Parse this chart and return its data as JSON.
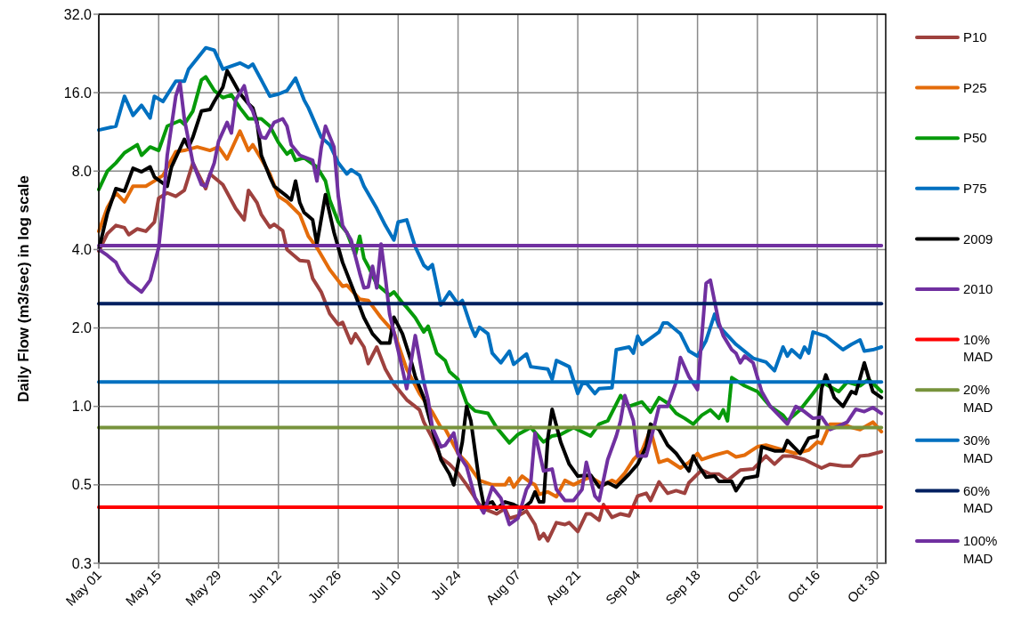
{
  "chart_data": {
    "type": "line",
    "ylabel": "Daily Flow (m3/sec) in log scale",
    "log": true,
    "grid": true,
    "legend": "right",
    "xlim": [
      "--05-01",
      "--11-01"
    ],
    "xticks": [
      {
        "value": "--05-01",
        "label": "May 01"
      },
      {
        "value": "--05-15",
        "label": "May 15"
      },
      {
        "value": "--05-29",
        "label": "May 29"
      },
      {
        "value": "--06-12",
        "label": "Jun 12"
      },
      {
        "value": "--06-26",
        "label": "Jun 26"
      },
      {
        "value": "--07-10",
        "label": "Jul 10"
      },
      {
        "value": "--07-24",
        "label": "Jul 24"
      },
      {
        "value": "--08-07",
        "label": "Aug 07"
      },
      {
        "value": "--08-21",
        "label": "Aug 21"
      },
      {
        "value": "--09-04",
        "label": "Sep 04"
      },
      {
        "value": "--09-18",
        "label": "Sep 18"
      },
      {
        "value": "--10-02",
        "label": "Oct 02"
      },
      {
        "value": "--10-16",
        "label": "Oct 16"
      },
      {
        "value": "--10-30",
        "label": "Oct 30"
      }
    ],
    "ylim": [
      0.25,
      32
    ],
    "yticks": [
      {
        "value": 0.25,
        "label": "0.3"
      },
      {
        "value": 0.5,
        "label": "0.5"
      },
      {
        "value": 1,
        "label": "1.0"
      },
      {
        "value": 2,
        "label": "2.0"
      },
      {
        "value": 4,
        "label": "4.0"
      },
      {
        "value": 8,
        "label": "8.0"
      },
      {
        "value": 16,
        "label": "16.0"
      },
      {
        "value": 32,
        "label": "32.0"
      }
    ],
    "series": [
      {
        "name": "P10",
        "color": "#9e413e",
        "x": [
          "--05-01",
          "--05-03",
          "--05-05",
          "--05-07",
          "--05-08",
          "--05-10",
          "--05-12",
          "--05-14",
          "--05-15",
          "--05-17",
          "--05-19",
          "--05-21",
          "--05-23",
          "--05-24",
          "--05-26",
          "--05-27",
          "--05-30",
          "--06-02",
          "--06-04",
          "--06-05",
          "--06-07",
          "--06-08",
          "--06-10",
          "--06-11",
          "--06-13",
          "--06-14",
          "--06-17",
          "--06-19",
          "--06-20",
          "--06-22",
          "--06-24",
          "--06-26",
          "--06-27",
          "--06-29",
          "--06-30",
          "--07-02",
          "--07-03",
          "--07-05",
          "--07-07",
          "--07-09",
          "--07-12",
          "--07-15",
          "--07-16",
          "--07-18",
          "--07-20",
          "--07-22",
          "--07-24",
          "--07-26",
          "--07-29",
          "--07-30",
          "--08-02",
          "--08-04",
          "--08-05",
          "--08-07",
          "--08-09",
          "--08-11",
          "--08-12",
          "--08-13",
          "--08-14",
          "--08-16",
          "--08-18",
          "--08-19",
          "--08-21",
          "--08-23",
          "--08-24",
          "--08-26",
          "--08-27",
          "--08-29",
          "--08-31",
          "--09-02",
          "--09-04",
          "--09-06",
          "--09-07",
          "--09-09",
          "--09-11",
          "--09-13",
          "--09-15",
          "--09-16",
          "--09-19",
          "--09-21",
          "--09-23",
          "--09-25",
          "--09-28",
          "--10-01",
          "--10-04",
          "--10-06",
          "--10-08",
          "--10-10",
          "--10-13",
          "--10-17",
          "--10-19",
          "--10-22",
          "--10-24",
          "--10-26",
          "--10-28",
          "--10-31"
        ],
        "values": [
          3.95,
          4.6,
          4.95,
          4.85,
          4.56,
          4.8,
          4.7,
          5.1,
          6.3,
          6.6,
          6.4,
          6.75,
          8.6,
          7.95,
          6.85,
          7.8,
          7.1,
          5.75,
          5.2,
          6.75,
          6.05,
          5.45,
          4.87,
          5.0,
          4.72,
          4.0,
          3.63,
          3.6,
          3.1,
          2.75,
          2.27,
          2.06,
          2.1,
          1.75,
          1.9,
          1.69,
          1.46,
          1.69,
          1.39,
          1.22,
          1.06,
          0.97,
          0.87,
          0.755,
          0.635,
          0.6,
          0.555,
          0.5,
          0.42,
          0.405,
          0.387,
          0.405,
          0.372,
          0.38,
          0.397,
          0.352,
          0.31,
          0.325,
          0.305,
          0.358,
          0.352,
          0.358,
          0.331,
          0.387,
          0.387,
          0.366,
          0.42,
          0.375,
          0.387,
          0.38,
          0.453,
          0.464,
          0.435,
          0.513,
          0.464,
          0.475,
          0.464,
          0.51,
          0.57,
          0.55,
          0.55,
          0.52,
          0.57,
          0.575,
          0.645,
          0.6,
          0.645,
          0.645,
          0.625,
          0.58,
          0.6,
          0.59,
          0.59,
          0.645,
          0.65,
          0.67
        ]
      },
      {
        "name": "P25",
        "color": "#e46c0a",
        "x": [
          "--05-01",
          "--05-03",
          "--05-05",
          "--05-07",
          "--05-09",
          "--05-12",
          "--05-14",
          "--05-16",
          "--05-19",
          "--05-21",
          "--05-24",
          "--05-27",
          "--05-29",
          "--05-31",
          "--06-03",
          "--06-05",
          "--06-06",
          "--06-08",
          "--06-10",
          "--06-12",
          "--06-14",
          "--06-17",
          "--06-19",
          "--06-21",
          "--06-24",
          "--06-27",
          "--06-28",
          "--07-01",
          "--07-03",
          "--07-06",
          "--07-09",
          "--07-12",
          "--07-15",
          "--07-18",
          "--07-20",
          "--07-21",
          "--07-24",
          "--07-26",
          "--07-29",
          "--08-01",
          "--08-04",
          "--08-05",
          "--08-06",
          "--08-08",
          "--08-10",
          "--08-11",
          "--08-12",
          "--08-14",
          "--08-16",
          "--08-18",
          "--08-20",
          "--08-22",
          "--08-24",
          "--08-27",
          "--08-29",
          "--08-30",
          "--09-01",
          "--09-03",
          "--09-05",
          "--09-07",
          "--09-09",
          "--09-11",
          "--09-14",
          "--09-16",
          "--09-18",
          "--09-19",
          "--09-22",
          "--09-25",
          "--09-27",
          "--09-29",
          "--10-02",
          "--10-04",
          "--10-08",
          "--10-11",
          "--10-14",
          "--10-16",
          "--10-17",
          "--10-19",
          "--10-22",
          "--10-24",
          "--10-26",
          "--10-29",
          "--10-31"
        ],
        "values": [
          4.7,
          5.8,
          6.6,
          6.1,
          7.0,
          7.0,
          7.33,
          7.7,
          9.5,
          9.6,
          9.9,
          9.6,
          9.9,
          8.9,
          11.4,
          9.6,
          10.1,
          8.9,
          7.8,
          6.4,
          6.1,
          5.45,
          4.5,
          4.07,
          3.35,
          2.89,
          2.92,
          2.58,
          2.55,
          2.19,
          1.93,
          1.39,
          1.12,
          0.95,
          0.83,
          0.82,
          0.66,
          0.61,
          0.52,
          0.5,
          0.5,
          0.53,
          0.49,
          0.54,
          0.51,
          0.5,
          0.46,
          0.47,
          0.45,
          0.52,
          0.5,
          0.52,
          0.535,
          0.5,
          0.52,
          0.51,
          0.555,
          0.625,
          0.675,
          0.815,
          0.61,
          0.625,
          0.58,
          0.61,
          0.66,
          0.625,
          0.65,
          0.67,
          0.64,
          0.65,
          0.7,
          0.71,
          0.68,
          0.66,
          0.68,
          0.73,
          0.72,
          0.855,
          0.855,
          0.83,
          0.815,
          0.87,
          0.8
        ]
      },
      {
        "name": "P50",
        "color": "#069a0a",
        "x": [
          "--05-01",
          "--05-03",
          "--05-05",
          "--05-07",
          "--05-10",
          "--05-11",
          "--05-13",
          "--05-15",
          "--05-17",
          "--05-20",
          "--05-21",
          "--05-23",
          "--05-25",
          "--05-26",
          "--05-28",
          "--05-30",
          "--06-01",
          "--06-03",
          "--06-05",
          "--06-08",
          "--06-10",
          "--06-12",
          "--06-14",
          "--06-15",
          "--06-16",
          "--06-18",
          "--06-21",
          "--06-23",
          "--06-24",
          "--06-26",
          "--06-28",
          "--06-30",
          "--07-01",
          "--07-02",
          "--07-03",
          "--07-05",
          "--07-08",
          "--07-09",
          "--07-11",
          "--07-12",
          "--07-14",
          "--07-16",
          "--07-17",
          "--07-19",
          "--07-21",
          "--07-22",
          "--07-24",
          "--07-26",
          "--07-28",
          "--07-31",
          "--08-02",
          "--08-05",
          "--08-07",
          "--08-10",
          "--08-13",
          "--08-15",
          "--08-17",
          "--08-20",
          "--08-24",
          "--08-26",
          "--08-28",
          "--08-31",
          "--09-02",
          "--09-05",
          "--09-07",
          "--09-09",
          "--09-11",
          "--09-13",
          "--09-15",
          "--09-17",
          "--09-19",
          "--09-21",
          "--09-23",
          "--09-24",
          "--09-25",
          "--09-26",
          "--09-29",
          "--10-02",
          "--10-05",
          "--10-08",
          "--10-09",
          "--10-12",
          "--10-15",
          "--10-17",
          "--10-21",
          "--10-23",
          "--10-26",
          "--10-28",
          "--10-31"
        ],
        "values": [
          6.8,
          8.0,
          8.6,
          9.4,
          10.1,
          9.2,
          9.9,
          9.6,
          11.9,
          12.5,
          12.1,
          13.6,
          17.9,
          18.4,
          16.3,
          15.3,
          15.7,
          14,
          12.7,
          12.7,
          11.9,
          10.3,
          9.3,
          9.6,
          8.8,
          9.0,
          8.3,
          7.33,
          6.2,
          5.1,
          4.65,
          3.82,
          4.5,
          3.7,
          3.45,
          2.94,
          2.67,
          2.75,
          2.5,
          2.4,
          2.19,
          1.93,
          2.03,
          1.6,
          1.5,
          1.36,
          1.27,
          1.03,
          0.96,
          0.94,
          0.83,
          0.725,
          0.78,
          0.83,
          0.73,
          0.77,
          0.78,
          0.83,
          0.77,
          0.855,
          0.88,
          1.1,
          1.0,
          1.04,
          0.95,
          1.08,
          1.03,
          0.94,
          0.9,
          0.855,
          0.925,
          0.97,
          0.9,
          0.97,
          0.88,
          1.29,
          1.2,
          1.14,
          1.0,
          0.925,
          0.88,
          0.97,
          1.12,
          1.24,
          1.14,
          1.24,
          1.2,
          1.27,
          1.14
        ]
      },
      {
        "name": "P75",
        "color": "#0070c0",
        "x": [
          "--05-01",
          "--05-05",
          "--05-07",
          "--05-09",
          "--05-11",
          "--05-13",
          "--05-14",
          "--05-16",
          "--05-19",
          "--05-21",
          "--05-22",
          "--05-26",
          "--05-28",
          "--05-30",
          "--06-03",
          "--06-05",
          "--06-06",
          "--06-08",
          "--06-10",
          "--06-12",
          "--06-14",
          "--06-16",
          "--06-18",
          "--06-19",
          "--06-22",
          "--06-24",
          "--06-26",
          "--06-28",
          "--06-29",
          "--07-01",
          "--07-02",
          "--07-05",
          "--07-07",
          "--07-09",
          "--07-10",
          "--07-12",
          "--07-14",
          "--07-16",
          "--07-17",
          "--07-18",
          "--07-20",
          "--07-22",
          "--07-24",
          "--07-25",
          "--07-27",
          "--07-28",
          "--07-29",
          "--07-31",
          "--08-01",
          "--08-03",
          "--08-05",
          "--08-06",
          "--08-09",
          "--08-10",
          "--08-14",
          "--08-15",
          "--08-16",
          "--08-19",
          "--08-21",
          "--08-22",
          "--08-23",
          "--08-25",
          "--08-26",
          "--08-29",
          "--08-30",
          "--09-02",
          "--09-03",
          "--09-04",
          "--09-05",
          "--09-09",
          "--09-10",
          "--09-11",
          "--09-14",
          "--09-16",
          "--09-18",
          "--09-20",
          "--09-22",
          "--09-23",
          "--09-27",
          "--10-01",
          "--10-04",
          "--10-06",
          "--10-08",
          "--10-09",
          "--10-10",
          "--10-12",
          "--10-13",
          "--10-14",
          "--10-15",
          "--10-18",
          "--10-22",
          "--10-24",
          "--10-26",
          "--10-27",
          "--10-29",
          "--10-31"
        ],
        "values": [
          11.5,
          11.9,
          15.5,
          13.1,
          14.3,
          12.8,
          15.5,
          14.8,
          17.7,
          17.7,
          19.7,
          23.8,
          23.3,
          19.7,
          20.8,
          20,
          20.6,
          17.9,
          15.5,
          15.8,
          16.3,
          18.2,
          15,
          14,
          10.8,
          10.1,
          8.6,
          7.8,
          8.1,
          7.7,
          7.0,
          5.75,
          4.95,
          4.35,
          5.1,
          5.2,
          4.1,
          3.48,
          3.37,
          3.5,
          2.45,
          2.75,
          2.47,
          2.55,
          2.03,
          1.86,
          2.01,
          1.9,
          1.6,
          1.47,
          1.63,
          1.45,
          1.59,
          1.42,
          1.39,
          1.27,
          1.5,
          1.42,
          1.12,
          1.22,
          1.23,
          1.12,
          1.17,
          1.18,
          1.65,
          1.69,
          1.6,
          1.86,
          1.73,
          1.93,
          2.09,
          2.09,
          1.9,
          1.63,
          1.56,
          1.79,
          2.26,
          2.03,
          1.73,
          1.53,
          1.48,
          1.37,
          1.69,
          1.56,
          1.65,
          1.54,
          1.69,
          1.6,
          1.93,
          1.86,
          1.65,
          1.73,
          1.8,
          1.63,
          1.65,
          1.69
        ]
      },
      {
        "name": "2009",
        "color": "#000000",
        "x": [
          "--05-01",
          "--05-03",
          "--05-05",
          "--05-07",
          "--05-09",
          "--05-11",
          "--05-13",
          "--05-14",
          "--05-17",
          "--05-18",
          "--05-21",
          "--05-22",
          "--05-23",
          "--05-25",
          "--05-27",
          "--05-28",
          "--05-30",
          "--05-31",
          "--06-01",
          "--06-03",
          "--06-05",
          "--06-06",
          "--06-07",
          "--06-08",
          "--06-10",
          "--06-11",
          "--06-14",
          "--06-15",
          "--06-16",
          "--06-17",
          "--06-18",
          "--06-20",
          "--06-21",
          "--06-23",
          "--06-25",
          "--06-27",
          "--06-30",
          "--07-02",
          "--07-04",
          "--07-06",
          "--07-08",
          "--07-09",
          "--07-11",
          "--07-13",
          "--07-14",
          "--07-16",
          "--07-18",
          "--07-20",
          "--07-22",
          "--07-23",
          "--07-25",
          "--07-26",
          "--07-27",
          "--07-29",
          "--07-30",
          "--08-01",
          "--08-02",
          "--08-04",
          "--08-06",
          "--08-08",
          "--08-10",
          "--08-11",
          "--08-12",
          "--08-13",
          "--08-14",
          "--08-15",
          "--08-17",
          "--08-19",
          "--08-21",
          "--08-24",
          "--08-26",
          "--08-28",
          "--08-30",
          "--09-02",
          "--09-04",
          "--09-06",
          "--09-07",
          "--09-09",
          "--09-11",
          "--09-13",
          "--09-16",
          "--09-17",
          "--09-18",
          "--09-20",
          "--09-22",
          "--09-23",
          "--09-26",
          "--09-27",
          "--09-29",
          "--10-02",
          "--10-03",
          "--10-06",
          "--10-08",
          "--10-09",
          "--10-12",
          "--10-14",
          "--10-16",
          "--10-17",
          "--10-18",
          "--10-20",
          "--10-22",
          "--10-24",
          "--10-25",
          "--10-27",
          "--10-28",
          "--10-29",
          "--10-31"
        ],
        "values": [
          4.0,
          5.5,
          6.85,
          6.7,
          8.2,
          7.95,
          8.3,
          7.6,
          7.0,
          8.3,
          10.6,
          9.9,
          10.8,
          13.6,
          13.8,
          14.8,
          16.8,
          19.4,
          18.2,
          15.9,
          14.5,
          14.0,
          12.3,
          9.2,
          7.6,
          7.0,
          6.4,
          6.2,
          7.33,
          6.05,
          5.55,
          5.2,
          4.2,
          6.5,
          4.65,
          3.57,
          2.67,
          2.19,
          1.9,
          1.75,
          1.75,
          2.2,
          1.9,
          1.5,
          1.3,
          1.08,
          0.815,
          0.625,
          0.55,
          0.5,
          0.73,
          1.0,
          0.88,
          0.51,
          0.42,
          0.43,
          0.404,
          0.43,
          0.42,
          0.404,
          0.43,
          0.47,
          0.43,
          0.43,
          0.755,
          0.975,
          0.73,
          0.6,
          0.54,
          0.545,
          0.49,
          0.51,
          0.49,
          0.55,
          0.6,
          0.7,
          0.855,
          0.815,
          0.71,
          0.66,
          0.565,
          0.645,
          0.6,
          0.535,
          0.54,
          0.515,
          0.515,
          0.475,
          0.53,
          0.54,
          0.7,
          0.675,
          0.675,
          0.74,
          0.66,
          0.755,
          0.77,
          1.17,
          1.32,
          1.08,
          1.0,
          1.14,
          1.12,
          1.47,
          1.29,
          1.14,
          1.08
        ]
      },
      {
        "name": "2010",
        "color": "#7030a0",
        "x": [
          "--05-01",
          "--05-03",
          "--05-05",
          "--05-06",
          "--05-08",
          "--05-11",
          "--05-13",
          "--05-15",
          "--05-16",
          "--05-17",
          "--05-19",
          "--05-20",
          "--05-21",
          "--05-23",
          "--05-25",
          "--05-26",
          "--05-28",
          "--05-29",
          "--05-31",
          "--06-01",
          "--06-02",
          "--06-04",
          "--06-05",
          "--06-06",
          "--06-08",
          "--06-09",
          "--06-11",
          "--06-13",
          "--06-14",
          "--06-15",
          "--06-17",
          "--06-20",
          "--06-21",
          "--06-22",
          "--06-23",
          "--06-25",
          "--06-26",
          "--06-27",
          "--06-29",
          "--07-01",
          "--07-02",
          "--07-03",
          "--07-04",
          "--07-05",
          "--07-06",
          "--07-07",
          "--07-08",
          "--07-10",
          "--07-11",
          "--07-12",
          "--07-13",
          "--07-14",
          "--07-16",
          "--07-17",
          "--07-18",
          "--07-20",
          "--07-21",
          "--07-23",
          "--07-24",
          "--07-26",
          "--07-28",
          "--07-30",
          "--08-01",
          "--08-03",
          "--08-05",
          "--08-07",
          "--08-09",
          "--08-10",
          "--08-11",
          "--08-13",
          "--08-15",
          "--08-16",
          "--08-18",
          "--08-20",
          "--08-22",
          "--08-23",
          "--08-25",
          "--08-26",
          "--08-28",
          "--08-30",
          "--08-31",
          "--09-01",
          "--09-03",
          "--09-04",
          "--09-06",
          "--09-08",
          "--09-09",
          "--09-11",
          "--09-13",
          "--09-14",
          "--09-16",
          "--09-18",
          "--09-20",
          "--09-21",
          "--09-23",
          "--09-24",
          "--09-26",
          "--09-27",
          "--09-28",
          "--09-29",
          "--10-01",
          "--10-03",
          "--10-05",
          "--10-07",
          "--10-09",
          "--10-11",
          "--10-13",
          "--10-15",
          "--10-17",
          "--10-19",
          "--10-21",
          "--10-23",
          "--10-25",
          "--10-27",
          "--10-29",
          "--10-31"
        ],
        "values": [
          4.0,
          3.8,
          3.57,
          3.3,
          3.0,
          2.75,
          3.05,
          4.07,
          5.85,
          9.2,
          15.5,
          17.4,
          12.7,
          8.6,
          7.1,
          7.0,
          8.6,
          10.4,
          12.3,
          11.2,
          15,
          17.0,
          14.5,
          13.6,
          10.8,
          10.7,
          12.3,
          12.7,
          11.9,
          10.1,
          9.2,
          8.8,
          7.33,
          9.8,
          11.9,
          9.9,
          6.4,
          4.95,
          4.35,
          3.25,
          2.85,
          2.87,
          3.45,
          2.85,
          4.2,
          3.14,
          2.26,
          1.64,
          1.39,
          1.17,
          1.48,
          1.87,
          1.24,
          1.06,
          0.83,
          0.7,
          0.71,
          0.79,
          0.66,
          0.587,
          0.445,
          0.39,
          0.49,
          0.445,
          0.352,
          0.372,
          0.48,
          0.51,
          0.79,
          0.565,
          0.575,
          0.48,
          0.435,
          0.435,
          0.48,
          0.61,
          0.453,
          0.435,
          0.625,
          0.77,
          0.88,
          1.1,
          0.88,
          0.645,
          0.645,
          0.855,
          1.0,
          1.0,
          1.24,
          1.54,
          1.3,
          1.16,
          2.97,
          3.05,
          2.09,
          1.87,
          1.65,
          1.6,
          1.47,
          1.56,
          1.47,
          1.14,
          1.0,
          0.925,
          0.855,
          1.0,
          0.955,
          0.9,
          0.91,
          0.815,
          0.84,
          0.87,
          0.975,
          0.955,
          0.99,
          0.94
        ]
      },
      {
        "name": "10% MAD",
        "color": "#ff0000",
        "x": [
          "--05-01",
          "--10-31"
        ],
        "values": [
          0.41,
          0.41
        ]
      },
      {
        "name": "20% MAD",
        "color": "#77933c",
        "x": [
          "--05-01",
          "--10-31"
        ],
        "values": [
          0.83,
          0.83
        ]
      },
      {
        "name": "30% MAD",
        "color": "#0070c0",
        "x": [
          "--05-01",
          "--10-31"
        ],
        "values": [
          1.24,
          1.24
        ]
      },
      {
        "name": "60% MAD",
        "color": "#002060",
        "x": [
          "--05-01",
          "--10-31"
        ],
        "values": [
          2.48,
          2.48
        ]
      },
      {
        "name": "100% MAD",
        "color": "#7030a0",
        "x": [
          "--05-01",
          "--10-31"
        ],
        "values": [
          4.14,
          4.14
        ]
      }
    ]
  }
}
